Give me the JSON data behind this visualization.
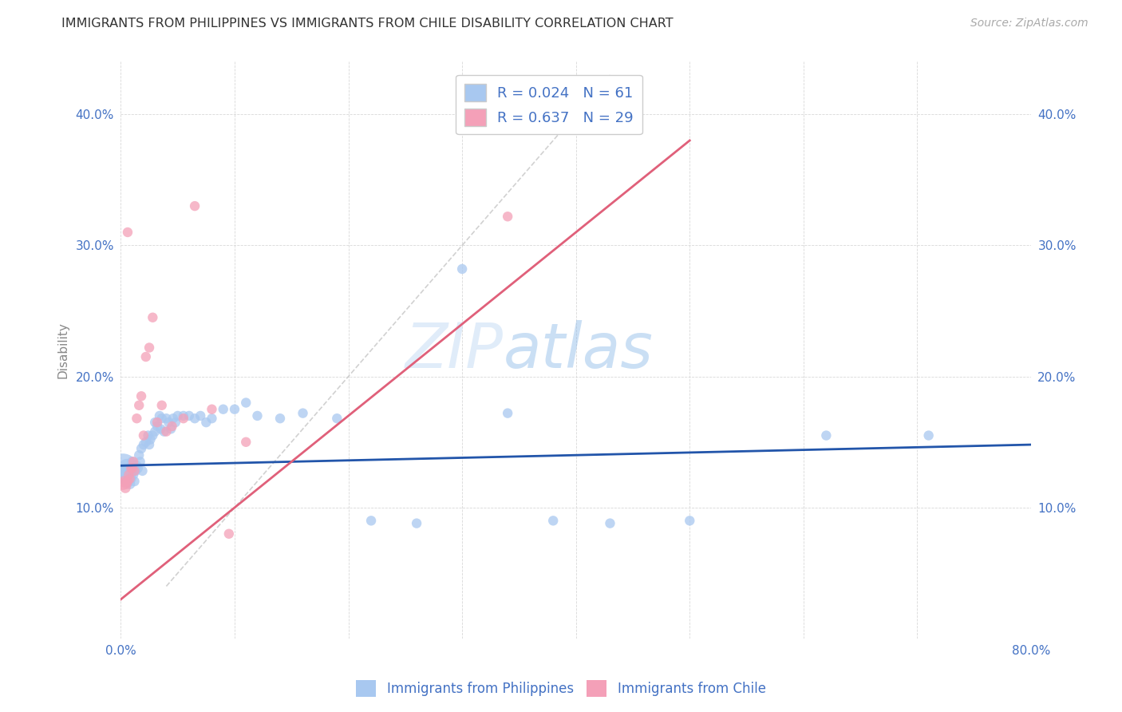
{
  "title": "IMMIGRANTS FROM PHILIPPINES VS IMMIGRANTS FROM CHILE DISABILITY CORRELATION CHART",
  "source": "Source: ZipAtlas.com",
  "ylabel": "Disability",
  "xmin": 0.0,
  "xmax": 0.8,
  "ymin": 0.0,
  "ymax": 0.44,
  "yticks": [
    0.1,
    0.2,
    0.3,
    0.4
  ],
  "ytick_labels": [
    "10.0%",
    "20.0%",
    "30.0%",
    "40.0%"
  ],
  "xticks": [
    0.0,
    0.1,
    0.2,
    0.3,
    0.4,
    0.5,
    0.6,
    0.7,
    0.8
  ],
  "xtick_labels": [
    "0.0%",
    "",
    "",
    "",
    "",
    "",
    "",
    "",
    "80.0%"
  ],
  "r_philippines": 0.024,
  "n_philippines": 61,
  "r_chile": 0.637,
  "n_chile": 29,
  "legend_label_philippines": "Immigrants from Philippines",
  "legend_label_chile": "Immigrants from Chile",
  "color_philippines": "#a8c8f0",
  "color_chile": "#f4a0b8",
  "color_philippines_line": "#2255aa",
  "color_chile_line": "#e0607a",
  "color_diag_line": "#cccccc",
  "watermark_zip": "ZIP",
  "watermark_atlas": "atlas",
  "philippines_x": [
    0.002,
    0.003,
    0.004,
    0.005,
    0.006,
    0.007,
    0.008,
    0.008,
    0.009,
    0.01,
    0.01,
    0.011,
    0.012,
    0.013,
    0.014,
    0.015,
    0.016,
    0.017,
    0.018,
    0.019,
    0.02,
    0.022,
    0.024,
    0.025,
    0.026,
    0.028,
    0.03,
    0.03,
    0.032,
    0.034,
    0.035,
    0.036,
    0.038,
    0.04,
    0.042,
    0.044,
    0.046,
    0.048,
    0.05,
    0.055,
    0.06,
    0.065,
    0.07,
    0.075,
    0.08,
    0.09,
    0.1,
    0.11,
    0.12,
    0.14,
    0.16,
    0.19,
    0.22,
    0.26,
    0.3,
    0.34,
    0.38,
    0.43,
    0.5,
    0.62,
    0.71
  ],
  "philippines_y": [
    0.13,
    0.125,
    0.128,
    0.132,
    0.12,
    0.125,
    0.118,
    0.13,
    0.122,
    0.128,
    0.135,
    0.125,
    0.12,
    0.128,
    0.132,
    0.13,
    0.14,
    0.135,
    0.145,
    0.128,
    0.148,
    0.15,
    0.155,
    0.148,
    0.152,
    0.155,
    0.165,
    0.158,
    0.162,
    0.17,
    0.16,
    0.168,
    0.158,
    0.168,
    0.165,
    0.16,
    0.168,
    0.165,
    0.17,
    0.17,
    0.17,
    0.168,
    0.17,
    0.165,
    0.168,
    0.175,
    0.175,
    0.18,
    0.17,
    0.168,
    0.172,
    0.168,
    0.09,
    0.088,
    0.282,
    0.172,
    0.09,
    0.088,
    0.09,
    0.155,
    0.155
  ],
  "philippines_sizes": [
    700,
    300,
    200,
    150,
    120,
    100,
    90,
    90,
    85,
    85,
    85,
    80,
    80,
    80,
    80,
    80,
    80,
    80,
    80,
    80,
    80,
    80,
    80,
    80,
    80,
    80,
    80,
    80,
    80,
    80,
    80,
    80,
    80,
    80,
    80,
    80,
    80,
    80,
    80,
    80,
    80,
    80,
    80,
    80,
    80,
    80,
    80,
    80,
    80,
    80,
    80,
    80,
    80,
    80,
    80,
    80,
    80,
    80,
    80,
    80,
    80
  ],
  "chile_x": [
    0.002,
    0.003,
    0.004,
    0.005,
    0.006,
    0.007,
    0.008,
    0.009,
    0.01,
    0.011,
    0.012,
    0.014,
    0.016,
    0.018,
    0.02,
    0.022,
    0.025,
    0.028,
    0.032,
    0.036,
    0.04,
    0.045,
    0.055,
    0.065,
    0.08,
    0.095,
    0.11,
    0.006,
    0.34
  ],
  "chile_y": [
    0.118,
    0.12,
    0.115,
    0.118,
    0.12,
    0.125,
    0.122,
    0.13,
    0.13,
    0.135,
    0.128,
    0.168,
    0.178,
    0.185,
    0.155,
    0.215,
    0.222,
    0.245,
    0.165,
    0.178,
    0.158,
    0.162,
    0.168,
    0.33,
    0.175,
    0.08,
    0.15,
    0.31,
    0.322
  ],
  "chile_sizes": [
    120,
    100,
    90,
    85,
    80,
    80,
    80,
    80,
    80,
    80,
    80,
    80,
    80,
    80,
    80,
    80,
    80,
    80,
    80,
    80,
    80,
    80,
    80,
    80,
    80,
    80,
    80,
    80,
    80
  ],
  "phil_line_x": [
    0.0,
    0.8
  ],
  "phil_line_y": [
    0.132,
    0.148
  ],
  "chile_line_x": [
    0.0,
    0.5
  ],
  "chile_line_y": [
    0.03,
    0.38
  ],
  "diag_line_x": [
    0.04,
    0.43
  ],
  "diag_line_y": [
    0.04,
    0.43
  ]
}
